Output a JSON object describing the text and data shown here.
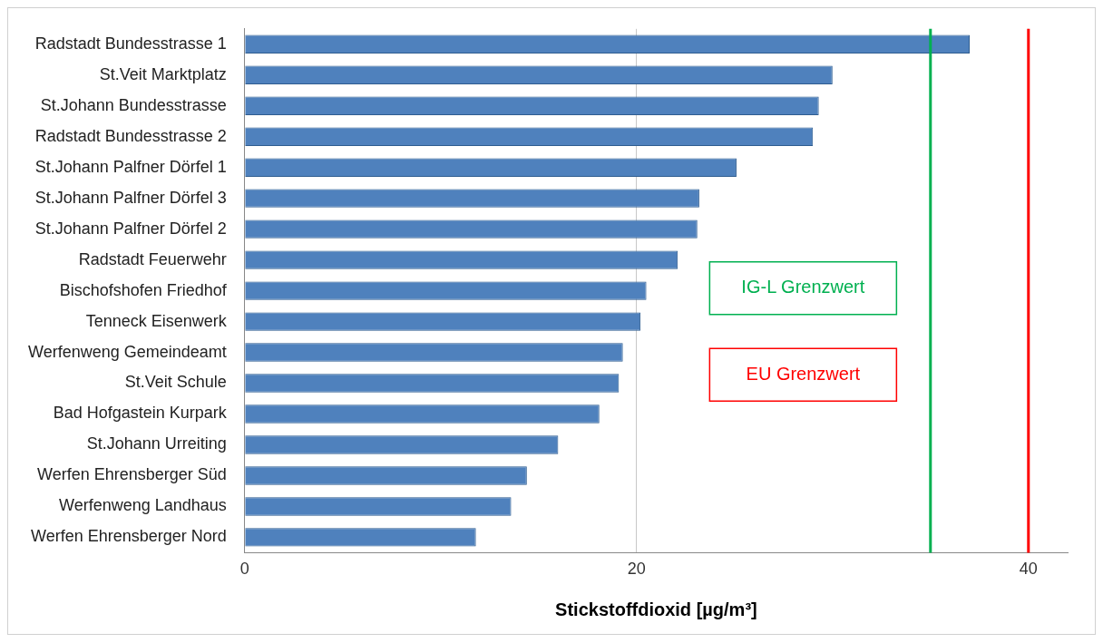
{
  "chart_data": {
    "type": "bar",
    "orientation": "horizontal",
    "xlabel": "Stickstoffdioxid [µg/m³]",
    "categories": [
      "Radstadt Bundesstrasse 1",
      "St.Veit Marktplatz",
      "St.Johann Bundesstrasse",
      "Radstadt Bundesstrasse 2",
      "St.Johann Palfner Dörfel 1",
      "St.Johann Palfner Dörfel 3",
      "St.Johann Palfner Dörfel 2",
      "Radstadt Feuerwehr",
      "Bischofshofen Friedhof",
      "Tenneck Eisenwerk",
      "Werfenweng Gemeindeamt",
      "St.Veit Schule",
      "Bad Hofgastein Kurpark",
      "St.Johann Urreiting",
      "Werfen Ehrensberger Süd",
      "Werfenweng Landhaus",
      "Werfen Ehrensberger Nord"
    ],
    "values": [
      37.0,
      30.0,
      29.3,
      29.0,
      25.1,
      23.2,
      23.1,
      22.1,
      20.5,
      20.2,
      19.3,
      19.1,
      18.1,
      16.0,
      14.4,
      13.6,
      11.8
    ],
    "color": "#4f81bd",
    "xlim": [
      0,
      42
    ],
    "xticks": [
      0,
      20,
      40
    ],
    "grid": "x",
    "legend": false,
    "ref_lines": [
      {
        "axis": "x",
        "value": 35,
        "label": "IG-L Grenzwert",
        "color": "#00b050"
      },
      {
        "axis": "x",
        "value": 40,
        "label": "EU Grenzwert",
        "color": "#ff0000"
      }
    ]
  }
}
